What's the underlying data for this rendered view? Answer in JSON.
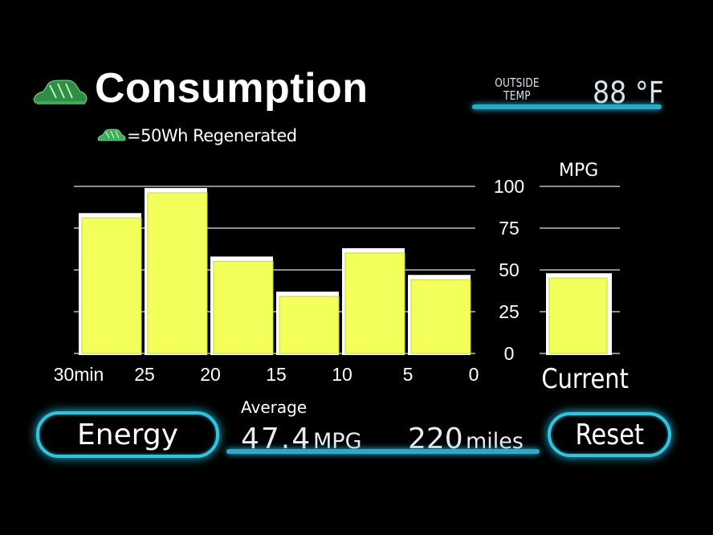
{
  "header": {
    "title": "Consumption",
    "legend_text": "=50Wh Regenerated",
    "car_icon": "green-car-icon"
  },
  "outside_temp": {
    "label_line1": "OUTSIDE",
    "label_line2": "TEMP",
    "value": "88 °F"
  },
  "chart_data": {
    "type": "bar",
    "categories": [
      "30-25min",
      "25-20min",
      "20-15min",
      "15-10min",
      "10-5min",
      "5-0min"
    ],
    "values": [
      84,
      99,
      58,
      37,
      63,
      47
    ],
    "x_ticks": [
      "30min",
      "25",
      "20",
      "15",
      "10",
      "5",
      "0"
    ],
    "y_ticks": [
      "100",
      "75",
      "50",
      "25",
      "0"
    ],
    "ylim": [
      0,
      100
    ],
    "ylabel": "MPG",
    "grid": true,
    "current": {
      "label": "Current",
      "value": 48
    },
    "bar_color": "#f3ff5a",
    "bar_highlight_color": "#ffffff"
  },
  "average": {
    "title": "Average",
    "mpg_value": "47.4",
    "mpg_unit": "MPG",
    "distance_value": "220",
    "distance_unit": "miles"
  },
  "buttons": {
    "energy": "Energy",
    "reset": "Reset"
  },
  "colors": {
    "accent_glow": "#34c3dc",
    "background": "#000000"
  }
}
